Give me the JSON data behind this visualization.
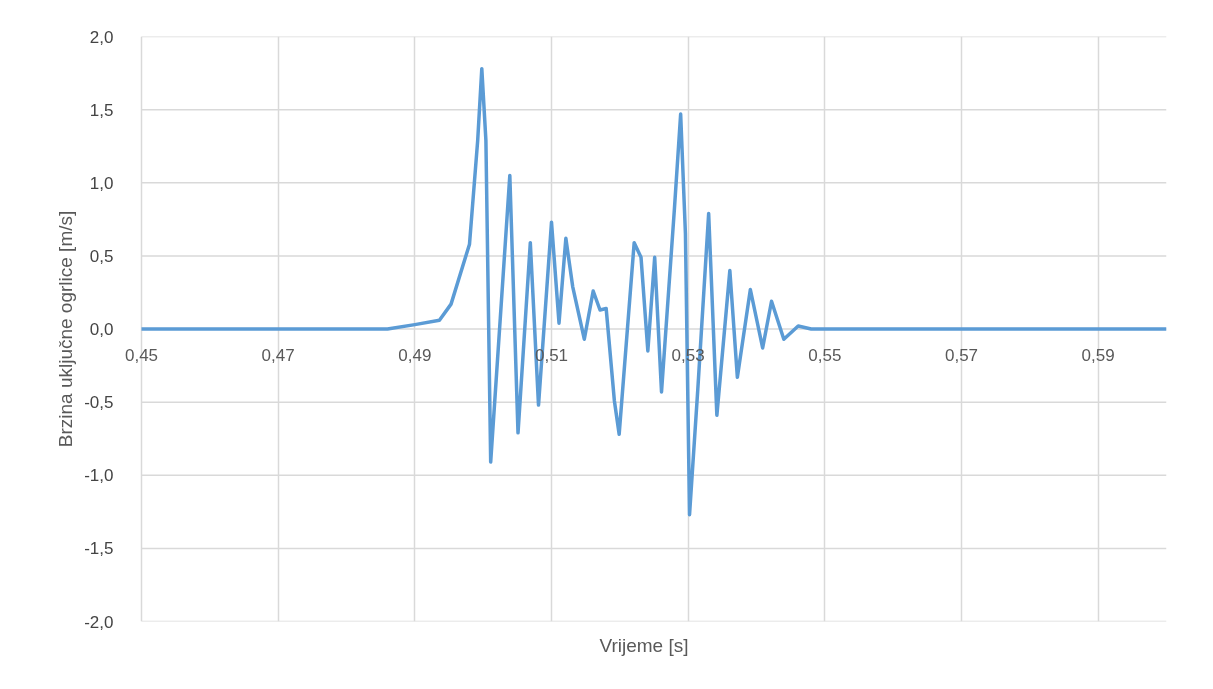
{
  "chart_data": {
    "type": "line",
    "xlabel": "Vrijeme [s]",
    "ylabel": "Brzina uključne ogrlice [m/s]",
    "xlim": [
      0.45,
      0.6
    ],
    "ylim": [
      -2.0,
      2.0
    ],
    "xticks": [
      {
        "value": 0.45,
        "label": "0,45"
      },
      {
        "value": 0.47,
        "label": "0,47"
      },
      {
        "value": 0.49,
        "label": "0,49"
      },
      {
        "value": 0.51,
        "label": "0,51"
      },
      {
        "value": 0.53,
        "label": "0,53"
      },
      {
        "value": 0.55,
        "label": "0,55"
      },
      {
        "value": 0.57,
        "label": "0,57"
      },
      {
        "value": 0.59,
        "label": "0,59"
      }
    ],
    "yticks": [
      {
        "value": -2.0,
        "label": "-2,0"
      },
      {
        "value": -1.5,
        "label": "-1,5"
      },
      {
        "value": -1.0,
        "label": "-1,0"
      },
      {
        "value": -0.5,
        "label": "-0,5"
      },
      {
        "value": 0.0,
        "label": "0,0"
      },
      {
        "value": 0.5,
        "label": "0,5"
      },
      {
        "value": 1.0,
        "label": "1,0"
      },
      {
        "value": 1.5,
        "label": "1,5"
      },
      {
        "value": 2.0,
        "label": "2,0"
      }
    ],
    "grid": true,
    "marker": "none",
    "line_style": "solid",
    "series": [
      {
        "color": "#5b9bd5",
        "x": [
          0.45,
          0.486,
          0.49,
          0.4936,
          0.4953,
          0.498,
          0.4992,
          0.4998,
          0.5004,
          0.5011,
          0.5039,
          0.5051,
          0.5069,
          0.5081,
          0.51,
          0.5111,
          0.5121,
          0.5131,
          0.5148,
          0.5161,
          0.5171,
          0.518,
          0.5192,
          0.5199,
          0.5221,
          0.5231,
          0.5241,
          0.5251,
          0.5261,
          0.528,
          0.5289,
          0.5296,
          0.5302,
          0.5314,
          0.533,
          0.5342,
          0.5361,
          0.5372,
          0.5391,
          0.5409,
          0.5422,
          0.544,
          0.5461,
          0.548,
          0.6
        ],
        "values": [
          0.0,
          0.0,
          0.03,
          0.06,
          0.17,
          0.58,
          1.29,
          1.78,
          1.29,
          -0.91,
          1.05,
          -0.71,
          0.59,
          -0.52,
          0.73,
          0.04,
          0.62,
          0.29,
          -0.07,
          0.26,
          0.13,
          0.14,
          -0.49,
          -0.72,
          0.59,
          0.49,
          -0.15,
          0.49,
          -0.43,
          0.83,
          1.47,
          0.65,
          -1.27,
          -0.42,
          0.79,
          -0.59,
          0.4,
          -0.33,
          0.27,
          -0.13,
          0.19,
          -0.07,
          0.02,
          0.0,
          0.0
        ]
      }
    ]
  }
}
